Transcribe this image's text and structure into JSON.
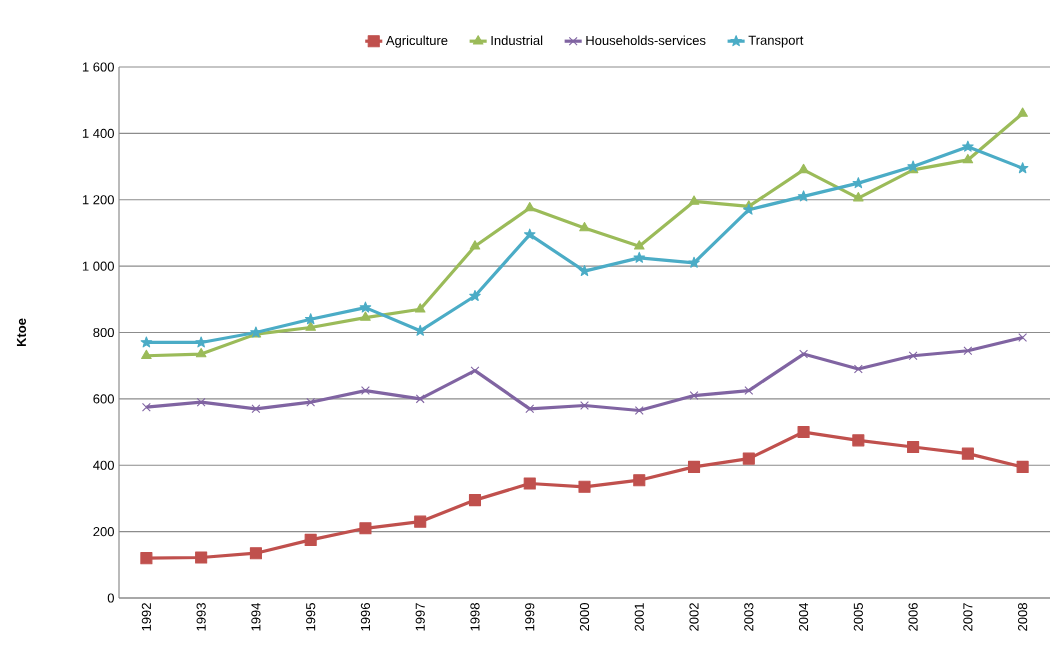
{
  "chart_data": {
    "type": "line",
    "ylabel": "Ktoe",
    "categories": [
      "1992",
      "1993",
      "1994",
      "1995",
      "1996",
      "1997",
      "1998",
      "1999",
      "2000",
      "2001",
      "2002",
      "2003",
      "2004",
      "2005",
      "2006",
      "2007",
      "2008"
    ],
    "series": [
      {
        "name": "Agriculture",
        "color": "#c0504d",
        "marker": "square",
        "values": [
          120,
          122,
          135,
          175,
          210,
          230,
          295,
          345,
          335,
          355,
          395,
          420,
          500,
          475,
          455,
          435,
          395
        ]
      },
      {
        "name": "Industrial",
        "color": "#9bbb59",
        "marker": "triangle",
        "values": [
          730,
          735,
          795,
          815,
          845,
          870,
          1060,
          1175,
          1115,
          1060,
          1195,
          1180,
          1290,
          1205,
          1290,
          1320,
          1460
        ]
      },
      {
        "name": "Households-services",
        "color": "#8064a2",
        "marker": "cross",
        "values": [
          575,
          590,
          570,
          590,
          625,
          600,
          685,
          570,
          580,
          565,
          610,
          625,
          735,
          690,
          730,
          745,
          785
        ]
      },
      {
        "name": "Transport",
        "color": "#4bacc6",
        "marker": "star",
        "values": [
          770,
          770,
          800,
          840,
          875,
          805,
          910,
          1095,
          985,
          1025,
          1010,
          1170,
          1210,
          1250,
          1300,
          1360,
          1295
        ]
      }
    ],
    "ylim": [
      0,
      1600
    ],
    "yticks": [
      0,
      200,
      400,
      600,
      800,
      {
        "value": 1000,
        "label": "1 000"
      },
      {
        "value": 1200,
        "label": "1 200"
      },
      {
        "value": 1400,
        "label": "1 400"
      },
      {
        "value": 1600,
        "label": "1 600"
      }
    ],
    "grid": "y",
    "legend": "top",
    "line_style": "solid"
  }
}
